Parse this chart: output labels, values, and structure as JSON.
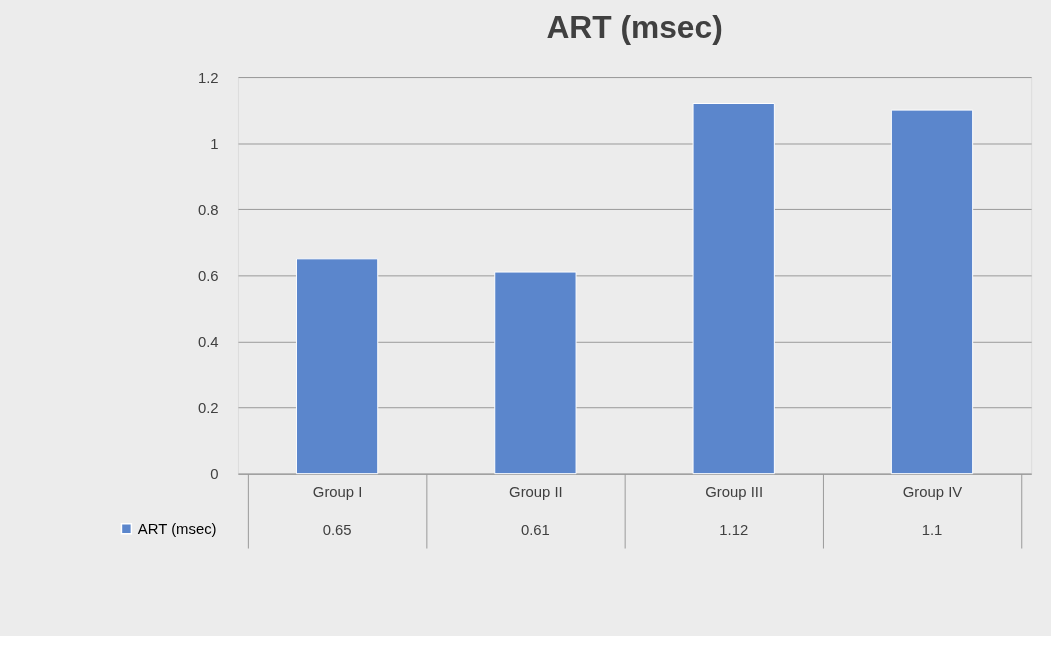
{
  "chart_data": {
    "type": "bar",
    "title": "ART (msec)",
    "categories": [
      "Group I",
      "Group II",
      "Group III",
      "Group IV"
    ],
    "series": [
      {
        "name": "ART (msec)",
        "color": "#5b86cc",
        "values": [
          0.65,
          0.61,
          1.12,
          1.1
        ]
      }
    ],
    "ylim": [
      0,
      1.2
    ],
    "yticks": [
      0,
      0.2,
      0.4,
      0.6,
      0.8,
      1,
      1.2
    ],
    "grid": "y",
    "legend": "bottom left",
    "data_labels": true
  }
}
